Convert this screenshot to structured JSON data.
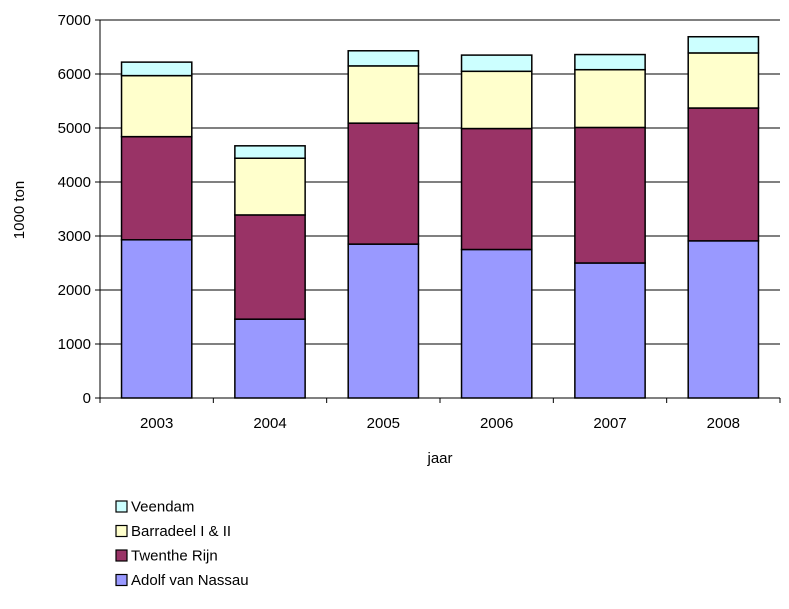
{
  "chart_data": {
    "type": "bar",
    "stacked": true,
    "categories": [
      "2003",
      "2004",
      "2005",
      "2006",
      "2007",
      "2008"
    ],
    "xlabel": "jaar",
    "ylabel": "1000 ton",
    "ylim": [
      0,
      7000
    ],
    "yticks": [
      0,
      1000,
      2000,
      3000,
      4000,
      5000,
      6000,
      7000
    ],
    "grid": true,
    "legend_position": "bottom",
    "series": [
      {
        "name": "Adolf van Nassau",
        "color": "#9999ff",
        "values": [
          2930,
          1460,
          2850,
          2750,
          2500,
          2910
        ]
      },
      {
        "name": "Twenthe Rijn",
        "color": "#993366",
        "values": [
          1910,
          1930,
          2240,
          2240,
          2510,
          2460
        ]
      },
      {
        "name": "Barradeel I & II",
        "color": "#ffffcc",
        "values": [
          1130,
          1050,
          1060,
          1060,
          1070,
          1020
        ]
      },
      {
        "name": "Veendam",
        "color": "#ccffff",
        "values": [
          250,
          230,
          280,
          300,
          280,
          300
        ]
      }
    ],
    "legend_order": [
      "Veendam",
      "Barradeel I & II",
      "Twenthe Rijn",
      "Adolf van Nassau"
    ]
  }
}
